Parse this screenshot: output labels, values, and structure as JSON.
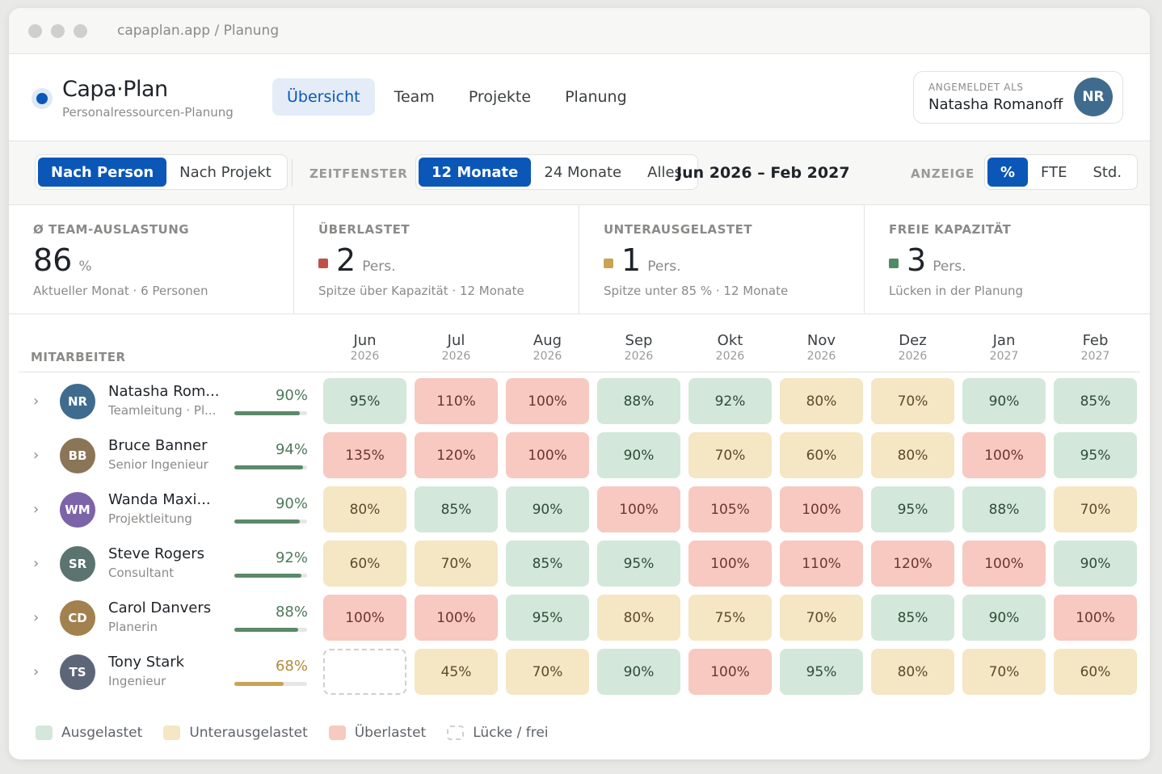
{
  "window": {
    "url": "capaplan.app / Planung"
  },
  "brand": {
    "name": "Capa·Plan",
    "subtitle": "Personalressourcen-Planung",
    "color": "#0b57b8"
  },
  "nav": [
    {
      "label": "Übersicht",
      "active": true
    },
    {
      "label": "Team",
      "active": false
    },
    {
      "label": "Projekte",
      "active": false
    },
    {
      "label": "Planung",
      "active": false
    }
  ],
  "user": {
    "caption": "ANGEMELDET ALS",
    "name": "Natasha Romanoff",
    "initials": "NR"
  },
  "toolbar": {
    "view": {
      "options": [
        "Nach Person",
        "Nach Projekt"
      ],
      "selected": "Nach Person"
    },
    "timeframe_label": "ZEITFENSTER",
    "timeframe": {
      "options": [
        "12 Monate",
        "24 Monate",
        "Alles"
      ],
      "selected": "12 Monate"
    },
    "date_range": "Jun 2026 – Feb 2027",
    "display_label": "ANZEIGE",
    "display": {
      "options": [
        "%",
        "FTE",
        "Std."
      ],
      "selected": "%"
    }
  },
  "stats": [
    {
      "label": "Ø TEAM-AUSLASTUNG",
      "value": "86",
      "unit": "%",
      "note": "Aktueller Monat · 6 Personen",
      "color": ""
    },
    {
      "label": "ÜBERLASTET",
      "value": "2",
      "unit": "Pers.",
      "note": "Spitze über Kapazität · 12 Monate",
      "color": "#c0514a"
    },
    {
      "label": "UNTERAUSGELASTET",
      "value": "1",
      "unit": "Pers.",
      "note": "Spitze unter 85 % · 12 Monate",
      "color": "#c9a354"
    },
    {
      "label": "FREIE KAPAZITÄT",
      "value": "3",
      "unit": "Pers.",
      "note": "Lücken in der Planung",
      "color": "#4f8a63"
    }
  ],
  "grid": {
    "column_label": "MITARBEITER",
    "months": [
      {
        "name": "Jun",
        "year": "2026"
      },
      {
        "name": "Jul",
        "year": "2026"
      },
      {
        "name": "Aug",
        "year": "2026"
      },
      {
        "name": "Sep",
        "year": "2026"
      },
      {
        "name": "Okt",
        "year": "2026"
      },
      {
        "name": "Nov",
        "year": "2026"
      },
      {
        "name": "Dez",
        "year": "2026"
      },
      {
        "name": "Jan",
        "year": "2027"
      },
      {
        "name": "Feb",
        "year": "2027"
      }
    ],
    "people": [
      {
        "initials": "NR",
        "name": "Natasha Rom...",
        "role": "Teamleitung · Pl...",
        "util": "90%",
        "util_value": 0.9,
        "avatar_color": "#3f6c8e",
        "bar_color": "#5b8a6a",
        "util_color": "#4f7a5c",
        "cells": [
          {
            "text": "95%",
            "status": "ok"
          },
          {
            "text": "110%",
            "status": "over"
          },
          {
            "text": "100%",
            "status": "over"
          },
          {
            "text": "88%",
            "status": "ok"
          },
          {
            "text": "92%",
            "status": "ok"
          },
          {
            "text": "80%",
            "status": "under"
          },
          {
            "text": "70%",
            "status": "under"
          },
          {
            "text": "90%",
            "status": "ok"
          },
          {
            "text": "85%",
            "status": "ok"
          }
        ]
      },
      {
        "initials": "BB",
        "name": "Bruce Banner",
        "role": "Senior Ingenieur",
        "util": "94%",
        "util_value": 0.94,
        "avatar_color": "#8a7556",
        "bar_color": "#5b8a6a",
        "util_color": "#4f7a5c",
        "cells": [
          {
            "text": "135%",
            "status": "over"
          },
          {
            "text": "120%",
            "status": "over"
          },
          {
            "text": "100%",
            "status": "over"
          },
          {
            "text": "90%",
            "status": "ok"
          },
          {
            "text": "70%",
            "status": "under"
          },
          {
            "text": "60%",
            "status": "under"
          },
          {
            "text": "80%",
            "status": "under"
          },
          {
            "text": "100%",
            "status": "over"
          },
          {
            "text": "95%",
            "status": "ok"
          }
        ]
      },
      {
        "initials": "WM",
        "name": "Wanda Maxi...",
        "role": "Projektleitung",
        "util": "90%",
        "util_value": 0.9,
        "avatar_color": "#7c64a8",
        "bar_color": "#5b8a6a",
        "util_color": "#4f7a5c",
        "cells": [
          {
            "text": "80%",
            "status": "under"
          },
          {
            "text": "85%",
            "status": "ok"
          },
          {
            "text": "90%",
            "status": "ok"
          },
          {
            "text": "100%",
            "status": "over"
          },
          {
            "text": "105%",
            "status": "over"
          },
          {
            "text": "100%",
            "status": "over"
          },
          {
            "text": "95%",
            "status": "ok"
          },
          {
            "text": "88%",
            "status": "ok"
          },
          {
            "text": "70%",
            "status": "under"
          }
        ]
      },
      {
        "initials": "SR",
        "name": "Steve Rogers",
        "role": "Consultant",
        "util": "92%",
        "util_value": 0.92,
        "avatar_color": "#5b7470",
        "bar_color": "#5b8a6a",
        "util_color": "#4f7a5c",
        "cells": [
          {
            "text": "60%",
            "status": "under"
          },
          {
            "text": "70%",
            "status": "under"
          },
          {
            "text": "85%",
            "status": "ok"
          },
          {
            "text": "95%",
            "status": "ok"
          },
          {
            "text": "100%",
            "status": "over"
          },
          {
            "text": "110%",
            "status": "over"
          },
          {
            "text": "120%",
            "status": "over"
          },
          {
            "text": "100%",
            "status": "over"
          },
          {
            "text": "90%",
            "status": "ok"
          }
        ]
      },
      {
        "initials": "CD",
        "name": "Carol Danvers",
        "role": "Planerin",
        "util": "88%",
        "util_value": 0.88,
        "avatar_color": "#a2814f",
        "bar_color": "#5b8a6a",
        "util_color": "#4f7a5c",
        "cells": [
          {
            "text": "100%",
            "status": "over"
          },
          {
            "text": "100%",
            "status": "over"
          },
          {
            "text": "95%",
            "status": "ok"
          },
          {
            "text": "80%",
            "status": "under"
          },
          {
            "text": "75%",
            "status": "under"
          },
          {
            "text": "70%",
            "status": "under"
          },
          {
            "text": "85%",
            "status": "ok"
          },
          {
            "text": "90%",
            "status": "ok"
          },
          {
            "text": "100%",
            "status": "over"
          }
        ]
      },
      {
        "initials": "TS",
        "name": "Tony Stark",
        "role": "Ingenieur",
        "util": "68%",
        "util_value": 0.68,
        "avatar_color": "#5d6679",
        "bar_color": "#c9a354",
        "util_color": "#b08b3e",
        "cells": [
          {
            "text": "",
            "status": "free"
          },
          {
            "text": "45%",
            "status": "under"
          },
          {
            "text": "70%",
            "status": "under"
          },
          {
            "text": "90%",
            "status": "ok"
          },
          {
            "text": "100%",
            "status": "over"
          },
          {
            "text": "95%",
            "status": "ok"
          },
          {
            "text": "80%",
            "status": "under"
          },
          {
            "text": "70%",
            "status": "under"
          },
          {
            "text": "60%",
            "status": "under"
          }
        ]
      }
    ]
  },
  "legend": [
    {
      "label": "Ausgelastet",
      "status": "ok"
    },
    {
      "label": "Unterausgelastet",
      "status": "under"
    },
    {
      "label": "Überlastet",
      "status": "over"
    },
    {
      "label": "Lücke / frei",
      "status": "free"
    }
  ]
}
